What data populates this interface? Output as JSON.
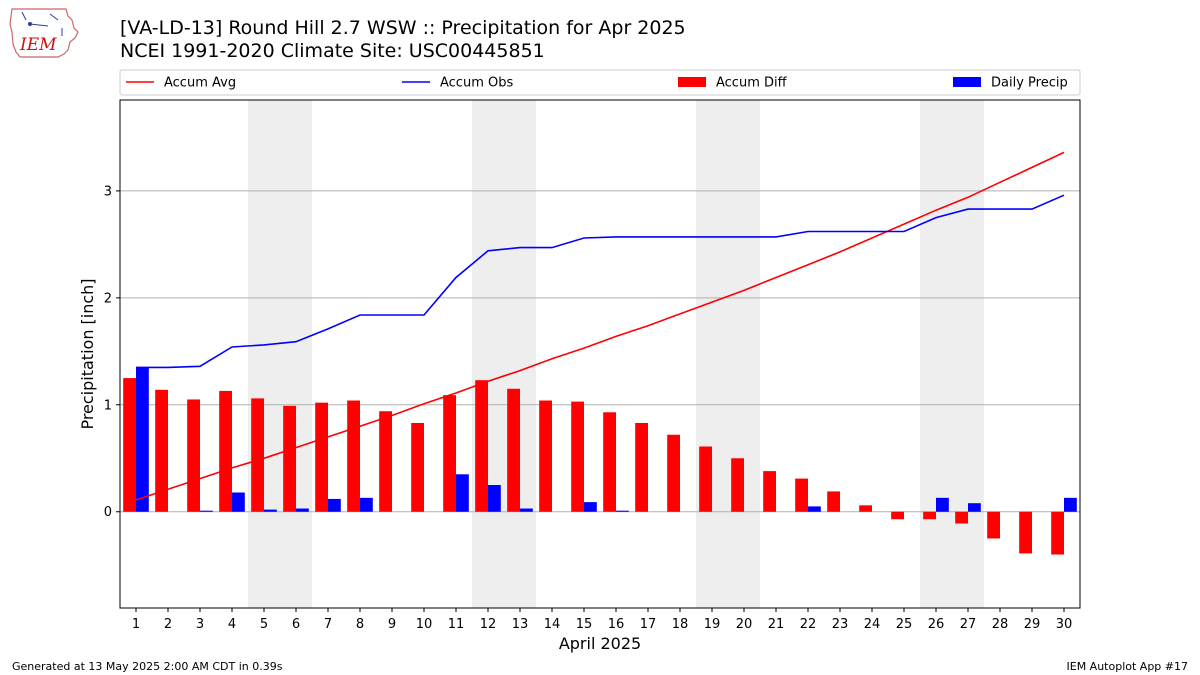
{
  "header": {
    "title_line1": "[VA-LD-13] Round Hill 2.7 WSW :: Precipitation for Apr 2025",
    "title_line2": "NCEI 1991-2020 Climate Site: USC00445851"
  },
  "logo": {
    "text": "IEM",
    "icon": "iem-iowa-logo"
  },
  "footer": {
    "left": "Generated at 13 May 2025 2:00 AM CDT in 0.39s",
    "right": "IEM Autoplot App #17"
  },
  "colors": {
    "accum_avg": "#ff0000",
    "accum_obs": "#0000ff",
    "accum_diff": "#ff0000",
    "daily_precip": "#0000ff",
    "weekend_shade": "#eeeeee",
    "grid": "#b0b0b0"
  },
  "chart_data": {
    "type": "bar",
    "xlabel": "April 2025",
    "ylabel": "Precipitation [inch]",
    "ylim": [
      -0.9,
      3.85
    ],
    "yticks": [
      0,
      1,
      2,
      3
    ],
    "grid": "horizontal",
    "legend_position": "top",
    "x": [
      "1",
      "2",
      "3",
      "4",
      "5",
      "6",
      "7",
      "8",
      "9",
      "10",
      "11",
      "12",
      "13",
      "14",
      "15",
      "16",
      "17",
      "18",
      "19",
      "20",
      "21",
      "22",
      "23",
      "24",
      "25",
      "26",
      "27",
      "28",
      "29",
      "30"
    ],
    "shaded_days": [
      [
        5,
        6
      ],
      [
        12,
        13
      ],
      [
        19,
        20
      ],
      [
        26,
        27
      ]
    ],
    "series": [
      {
        "name": "Accum Avg",
        "kind": "line",
        "values": [
          0.11,
          0.21,
          0.31,
          0.41,
          0.5,
          0.6,
          0.7,
          0.8,
          0.9,
          1.01,
          1.11,
          1.22,
          1.32,
          1.43,
          1.53,
          1.64,
          1.74,
          1.85,
          1.96,
          2.07,
          2.19,
          2.31,
          2.43,
          2.56,
          2.69,
          2.82,
          2.94,
          3.08,
          3.22,
          3.36
        ]
      },
      {
        "name": "Accum Obs",
        "kind": "line",
        "values": [
          1.35,
          1.35,
          1.36,
          1.54,
          1.56,
          1.59,
          1.71,
          1.84,
          1.84,
          1.84,
          2.19,
          2.44,
          2.47,
          2.47,
          2.56,
          2.57,
          2.57,
          2.57,
          2.57,
          2.57,
          2.57,
          2.62,
          2.62,
          2.62,
          2.62,
          2.75,
          2.83,
          2.83,
          2.83,
          2.96
        ]
      },
      {
        "name": "Accum Diff",
        "kind": "bar",
        "values": [
          1.25,
          1.14,
          1.05,
          1.13,
          1.06,
          0.99,
          1.02,
          1.04,
          0.94,
          0.83,
          1.09,
          1.23,
          1.15,
          1.04,
          1.03,
          0.93,
          0.83,
          0.72,
          0.61,
          0.5,
          0.38,
          0.31,
          0.19,
          0.06,
          -0.07,
          -0.07,
          -0.11,
          -0.25,
          -0.39,
          -0.4
        ]
      },
      {
        "name": "Daily Precip",
        "kind": "bar",
        "values": [
          1.35,
          0.0,
          0.01,
          0.18,
          0.02,
          0.03,
          0.12,
          0.13,
          0.0,
          0.0,
          0.35,
          0.25,
          0.03,
          0.0,
          0.09,
          0.01,
          0.0,
          0.0,
          0.0,
          0.0,
          0.0,
          0.05,
          0.0,
          0.0,
          0.0,
          0.13,
          0.08,
          0.0,
          0.0,
          0.13
        ]
      }
    ]
  }
}
